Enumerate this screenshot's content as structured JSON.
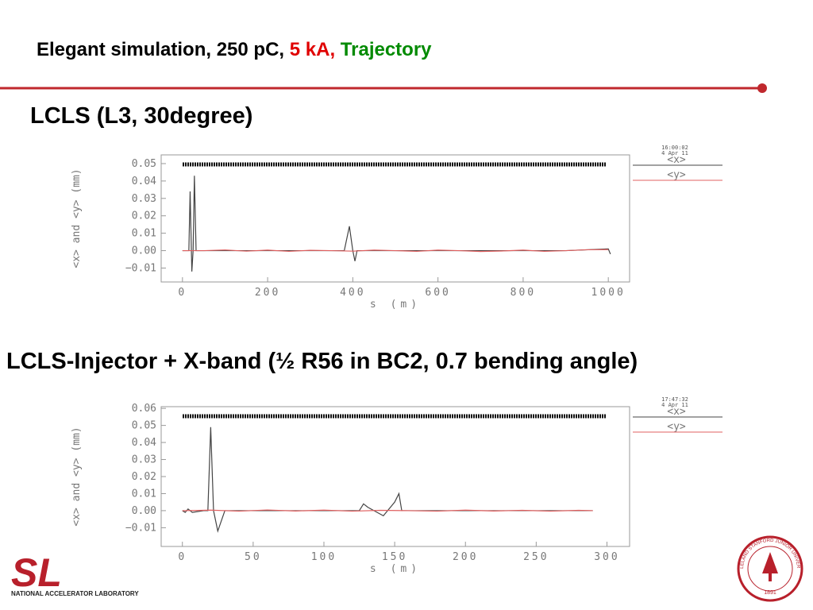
{
  "slide_title": {
    "part1": "Elegant simulation, 250 pC,",
    "part2": "5 kA,",
    "part3": "Trajectory"
  },
  "section1": "LCLS (L3, 30degree)",
  "section2": "LCLS-Injector + X-band (½ R56 in BC2, 0.7 bending angle)",
  "logo_left": {
    "mark": "SL",
    "text": "NATIONAL ACCELERATOR LABORATORY"
  },
  "logo_right": {
    "ring": "LELAND STANFORD JUNIOR UNIVERSITY",
    "year": "1891"
  },
  "chart_data": [
    {
      "type": "line",
      "timestamp": [
        "16:00:02",
        "4 Apr 11"
      ],
      "y_label": "<x> and <y> (mm)",
      "x_label": "s (m)",
      "xlim": [
        -50,
        1050
      ],
      "ylim": [
        -0.018,
        0.055
      ],
      "xticks": [
        0,
        200,
        400,
        600,
        800,
        1000
      ],
      "yticks": [
        {
          "value": -0.01,
          "label": "−0.01"
        },
        {
          "value": 0,
          "label": "0.00"
        },
        0.01,
        0.02,
        0.03,
        0.04,
        0.05
      ],
      "series": [
        {
          "name": "<x>",
          "color": "#444444",
          "x": [
            0,
            5,
            15,
            18,
            22,
            25,
            28,
            32,
            40,
            100,
            200,
            300,
            380,
            392,
            400,
            405,
            410,
            500,
            600,
            700,
            800,
            900,
            1000,
            1005
          ],
          "values": [
            0,
            0,
            0,
            0.034,
            -0.012,
            0,
            0.043,
            0,
            0,
            0,
            0,
            0,
            0,
            0.014,
            0,
            -0.006,
            0,
            0,
            0,
            0,
            0,
            0,
            0.001,
            -0.002
          ]
        },
        {
          "name": "<y>",
          "color": "#e06060",
          "x": [
            0,
            50,
            100,
            150,
            200,
            250,
            300,
            350,
            400,
            450,
            500,
            550,
            600,
            650,
            700,
            750,
            800,
            850,
            900,
            950,
            1000
          ],
          "values": [
            0,
            0,
            0.0004,
            -0.0003,
            0.0003,
            -0.0004,
            0.0002,
            0,
            -0.0003,
            0.0003,
            0,
            -0.0004,
            0.0003,
            0,
            -0.0005,
            -0.0002,
            0.0003,
            -0.0004,
            0,
            0.0005,
            0.0006
          ]
        }
      ]
    },
    {
      "type": "line",
      "timestamp": [
        "17:47:32",
        "4 Apr 11"
      ],
      "y_label": "<x> and <y> (mm)",
      "x_label": "s (m)",
      "xlim": [
        -15,
        316
      ],
      "ylim": [
        -0.021,
        0.061
      ],
      "xticks": [
        0,
        50,
        100,
        150,
        200,
        250,
        300
      ],
      "yticks": [
        {
          "value": -0.01,
          "label": "−0.01"
        },
        {
          "value": 0,
          "label": "0.00"
        },
        0.01,
        0.02,
        0.03,
        0.04,
        0.05,
        0.06
      ],
      "series": [
        {
          "name": "<x>",
          "color": "#444444",
          "x": [
            0,
            2,
            4,
            7,
            15,
            18,
            20,
            22,
            25,
            30,
            50,
            100,
            125,
            128,
            131,
            142,
            150,
            153,
            155,
            156,
            200,
            250,
            290
          ],
          "values": [
            0,
            -0.001,
            0.001,
            -0.001,
            0,
            0,
            0.049,
            0,
            -0.012,
            0,
            0,
            0,
            0,
            0.004,
            0.002,
            -0.003,
            0.005,
            0.01,
            0,
            0,
            0,
            0,
            0
          ]
        },
        {
          "name": "<y>",
          "color": "#e06060",
          "x": [
            0,
            20,
            40,
            60,
            80,
            100,
            120,
            140,
            160,
            180,
            200,
            220,
            240,
            260,
            280,
            290
          ],
          "values": [
            0,
            0.0003,
            -0.0003,
            0.0004,
            -0.0002,
            0.0003,
            -0.0003,
            0.0002,
            0,
            -0.0003,
            0.0003,
            -0.0002,
            0.0002,
            -0.0003,
            0.0002,
            0
          ]
        }
      ]
    }
  ]
}
